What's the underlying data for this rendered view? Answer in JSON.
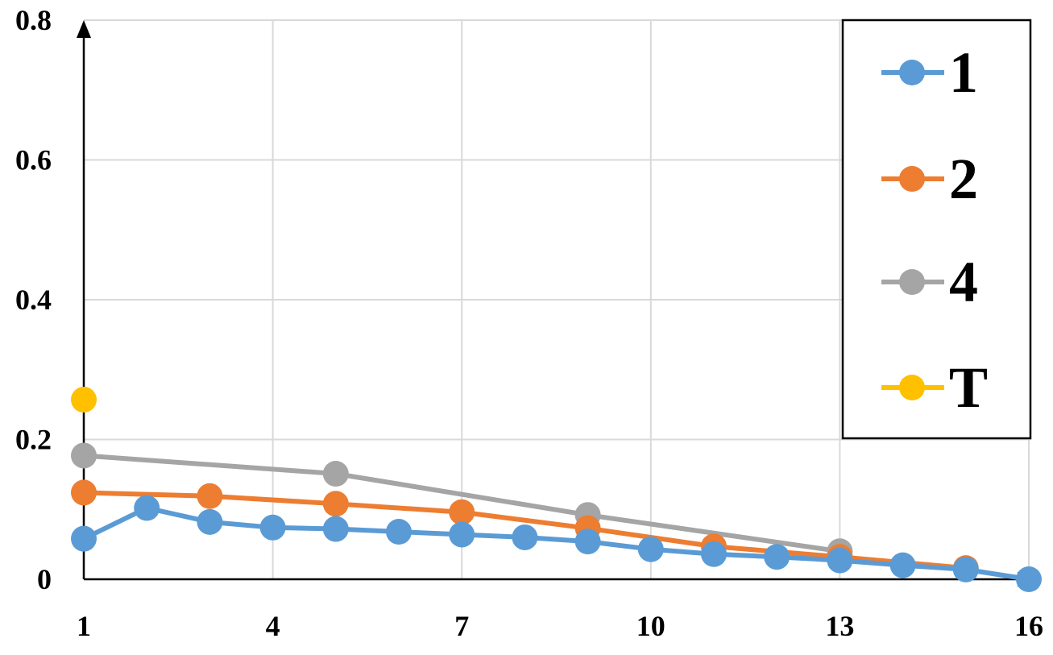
{
  "chart_data": {
    "type": "line",
    "title": "",
    "xlabel": "",
    "ylabel": "",
    "xlim": [
      1,
      16
    ],
    "ylim": [
      0,
      0.8
    ],
    "x_ticks": [
      1,
      4,
      7,
      10,
      13,
      16
    ],
    "x_tick_labels": [
      "1",
      "4",
      "7",
      "10",
      "13",
      "16"
    ],
    "y_ticks": [
      0,
      0.2,
      0.4,
      0.6,
      0.8
    ],
    "y_tick_labels": [
      "0",
      "0.2",
      "0.4",
      "0.6",
      "0.8"
    ],
    "grid": true,
    "legend_position": "top-right",
    "series": [
      {
        "name": "1",
        "color": "#5b9bd5",
        "x": [
          1,
          2,
          3,
          4,
          5,
          6,
          7,
          8,
          9,
          10,
          11,
          12,
          13,
          14,
          15,
          16
        ],
        "y": [
          0.058,
          0.102,
          0.082,
          0.074,
          0.072,
          0.068,
          0.064,
          0.06,
          0.054,
          0.043,
          0.036,
          0.032,
          0.027,
          0.02,
          0.014,
          0.0
        ]
      },
      {
        "name": "2",
        "color": "#ed7d31",
        "x": [
          1,
          3,
          5,
          7,
          9,
          11,
          13,
          15
        ],
        "y": [
          0.124,
          0.119,
          0.108,
          0.096,
          0.073,
          0.047,
          0.032,
          0.016
        ]
      },
      {
        "name": "4",
        "color": "#a5a5a5",
        "x": [
          1,
          5,
          9,
          13
        ],
        "y": [
          0.177,
          0.151,
          0.092,
          0.04
        ]
      },
      {
        "name": "T",
        "color": "#ffc000",
        "x": [
          1
        ],
        "y": [
          0.257
        ]
      }
    ]
  }
}
